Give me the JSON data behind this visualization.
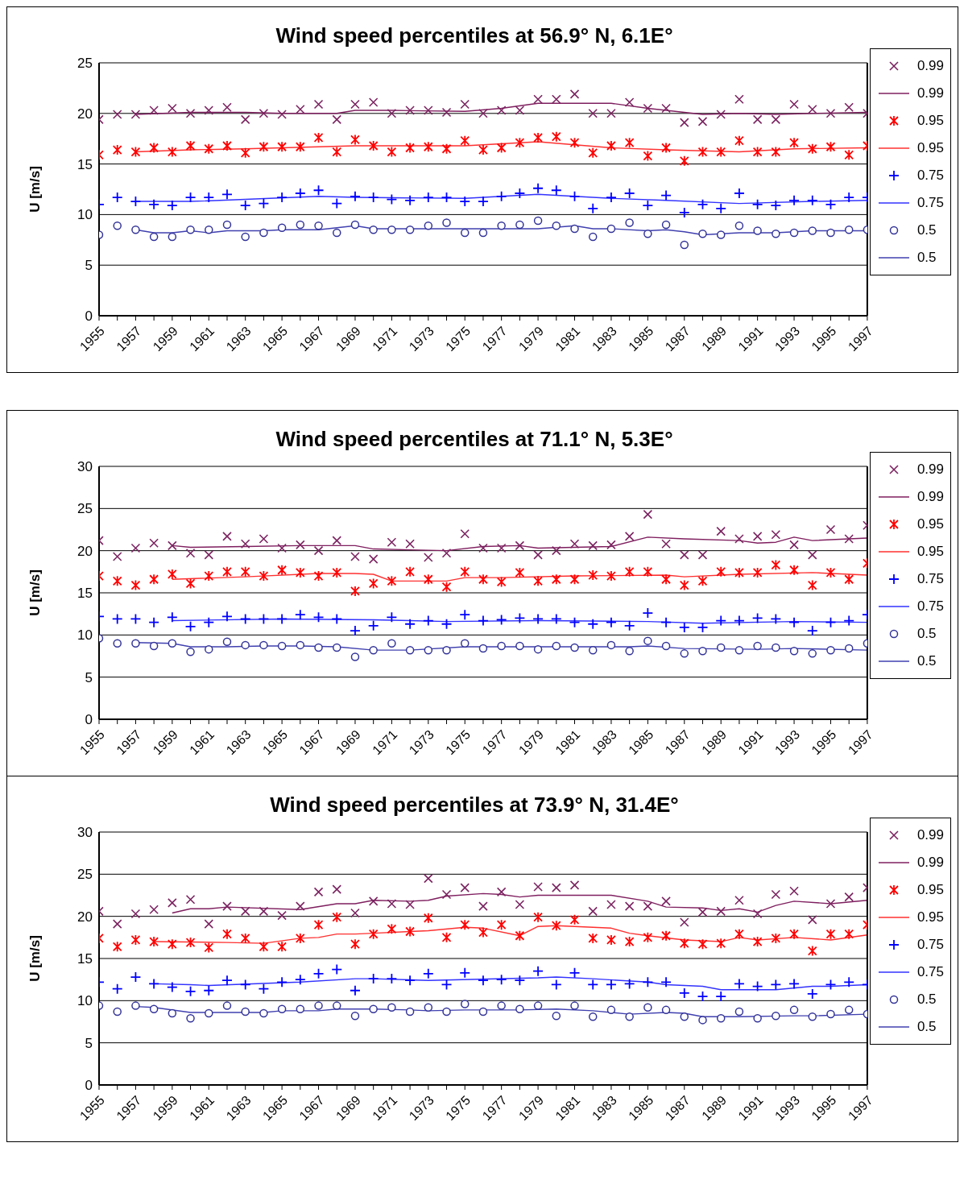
{
  "chart_data": [
    {
      "type": "scatter",
      "title": "Wind speed percentiles at 56.9° N, 6.1E°",
      "ylabel": "U [m/s]",
      "legend": "right",
      "grid": "y",
      "x": [
        1955,
        1956,
        1957,
        1958,
        1959,
        1960,
        1961,
        1962,
        1963,
        1964,
        1965,
        1966,
        1967,
        1968,
        1969,
        1970,
        1971,
        1972,
        1973,
        1974,
        1975,
        1976,
        1977,
        1978,
        1979,
        1980,
        1981,
        1982,
        1983,
        1984,
        1985,
        1986,
        1987,
        1988,
        1989,
        1990,
        1991,
        1992,
        1993,
        1994,
        1995,
        1996,
        1997
      ],
      "xlim": [
        1955,
        1997
      ],
      "xticks": [
        1955,
        {
          "value": 1956,
          "label": null
        },
        1957,
        {
          "value": 1958,
          "label": null
        },
        1959,
        {
          "value": 1960,
          "label": null
        },
        1961,
        {
          "value": 1962,
          "label": null
        },
        1963,
        {
          "value": 1964,
          "label": null
        },
        1965,
        {
          "value": 1966,
          "label": null
        },
        1967,
        {
          "value": 1968,
          "label": null
        },
        1969,
        {
          "value": 1970,
          "label": null
        },
        1971,
        {
          "value": 1972,
          "label": null
        },
        1973,
        {
          "value": 1974,
          "label": null
        },
        1975,
        {
          "value": 1976,
          "label": null
        },
        1977,
        {
          "value": 1978,
          "label": null
        },
        1979,
        {
          "value": 1980,
          "label": null
        },
        1981,
        {
          "value": 1982,
          "label": null
        },
        1983,
        {
          "value": 1984,
          "label": null
        },
        1985,
        {
          "value": 1986,
          "label": null
        },
        1987,
        {
          "value": 1988,
          "label": null
        },
        1989,
        {
          "value": 1990,
          "label": null
        },
        1991,
        {
          "value": 1992,
          "label": null
        },
        1993,
        {
          "value": 1994,
          "label": null
        },
        1995,
        {
          "value": 1996,
          "label": null
        },
        1997
      ],
      "ylim": [
        0,
        25
      ],
      "yticks": [
        0,
        5,
        10,
        15,
        20,
        25
      ],
      "series": [
        {
          "name": "0.99",
          "marker": "x",
          "color": "#7b2461",
          "values": [
            19.4,
            19.9,
            19.9,
            20.3,
            20.5,
            20.0,
            20.3,
            20.6,
            19.4,
            20.0,
            19.9,
            20.4,
            20.9,
            19.4,
            20.9,
            21.1,
            20.0,
            20.3,
            20.3,
            20.1,
            20.9,
            20.0,
            20.3,
            20.3,
            21.4,
            21.4,
            21.9,
            20.0,
            20.0,
            21.1,
            20.5,
            20.5,
            19.1,
            19.2,
            19.9,
            21.4,
            19.4,
            19.4,
            20.9,
            20.4,
            20.0,
            20.6,
            20.0
          ]
        },
        {
          "name": "0.99",
          "type": "line",
          "color": "#7f1f5f",
          "x": [
            1957,
            1960,
            1963,
            1965,
            1968,
            1969,
            1971,
            1975,
            1977,
            1979,
            1983,
            1985,
            1988,
            1990,
            1992,
            1994,
            1997
          ],
          "values": [
            19.9,
            20.1,
            20.1,
            20.0,
            20.0,
            20.3,
            20.3,
            20.2,
            20.5,
            21.0,
            21.0,
            20.5,
            19.9,
            20.0,
            19.9,
            20.0,
            20.1
          ]
        },
        {
          "name": "0.95",
          "color": "#ff0000",
          "values": [
            15.9,
            16.4,
            16.2,
            16.6,
            16.2,
            16.8,
            16.5,
            16.8,
            16.1,
            16.7,
            16.7,
            16.7,
            17.6,
            16.2,
            17.4,
            16.8,
            16.2,
            16.6,
            16.7,
            16.5,
            17.3,
            16.4,
            16.6,
            17.1,
            17.6,
            17.7,
            17.1,
            16.1,
            16.8,
            17.1,
            15.8,
            16.6,
            15.3,
            16.2,
            16.2,
            17.3,
            16.2,
            16.2,
            17.1,
            16.5,
            16.7,
            15.9,
            16.8
          ]
        },
        {
          "name": "0.95",
          "type": "line",
          "color": "#ff3030",
          "x": [
            1957,
            1960,
            1963,
            1967,
            1969,
            1972,
            1975,
            1979,
            1983,
            1986,
            1990,
            1993,
            1997
          ],
          "values": [
            16.2,
            16.4,
            16.5,
            16.7,
            16.8,
            16.8,
            16.8,
            17.2,
            16.6,
            16.4,
            16.2,
            16.5,
            16.6
          ]
        },
        {
          "name": "0.75",
          "marker": "cross",
          "color": "#0000ff",
          "values": [
            11.0,
            11.7,
            11.3,
            11.0,
            10.9,
            11.7,
            11.7,
            12.0,
            10.9,
            11.1,
            11.7,
            12.1,
            12.4,
            11.1,
            11.8,
            11.7,
            11.5,
            11.4,
            11.7,
            11.7,
            11.3,
            11.3,
            11.8,
            12.1,
            12.6,
            12.4,
            11.8,
            10.6,
            11.7,
            12.1,
            10.9,
            11.9,
            10.2,
            11.0,
            10.6,
            12.1,
            11.0,
            10.9,
            11.4,
            11.4,
            11.0,
            11.7,
            11.7
          ]
        },
        {
          "name": "0.75",
          "type": "line",
          "color": "#3333ff",
          "x": [
            1957,
            1960,
            1963,
            1967,
            1969,
            1975,
            1979,
            1983,
            1986,
            1990,
            1994,
            1997
          ],
          "values": [
            11.3,
            11.3,
            11.5,
            11.8,
            11.7,
            11.6,
            12.0,
            11.6,
            11.4,
            11.1,
            11.3,
            11.4
          ]
        },
        {
          "name": "0.5",
          "marker": "circle",
          "color": "#333399",
          "values": [
            8.0,
            8.9,
            8.5,
            7.8,
            7.8,
            8.5,
            8.5,
            9.0,
            7.8,
            8.2,
            8.7,
            9.0,
            8.9,
            8.2,
            9.0,
            8.5,
            8.5,
            8.5,
            8.9,
            9.2,
            8.2,
            8.2,
            8.9,
            9.0,
            9.4,
            8.9,
            8.6,
            7.8,
            8.6,
            9.2,
            8.1,
            9.0,
            7.0,
            8.1,
            8.0,
            8.9,
            8.4,
            8.1,
            8.2,
            8.4,
            8.2,
            8.5,
            8.5
          ]
        },
        {
          "name": "0.5",
          "type": "line",
          "color": "#4040b0",
          "x": [
            1957,
            1958,
            1959,
            1960,
            1961,
            1962,
            1963,
            1964,
            1965,
            1967,
            1969,
            1970,
            1976,
            1979,
            1981,
            1982,
            1983,
            1985,
            1986,
            1987,
            1988,
            1990,
            1992,
            1994,
            1997
          ],
          "values": [
            8.5,
            8.2,
            8.2,
            8.4,
            8.2,
            8.4,
            8.4,
            8.4,
            8.5,
            8.5,
            8.9,
            8.6,
            8.6,
            8.6,
            8.9,
            8.6,
            8.6,
            8.4,
            8.5,
            8.3,
            8.0,
            8.2,
            8.2,
            8.4,
            8.4
          ]
        }
      ]
    },
    {
      "type": "scatter",
      "title": "Wind speed percentiles at 71.1° N, 5.3E°",
      "ylabel": "U [m/s]",
      "legend": "right",
      "grid": "y",
      "x": [
        1955,
        1956,
        1957,
        1958,
        1959,
        1960,
        1961,
        1962,
        1963,
        1964,
        1965,
        1966,
        1967,
        1968,
        1969,
        1970,
        1971,
        1972,
        1973,
        1974,
        1975,
        1976,
        1977,
        1978,
        1979,
        1980,
        1981,
        1982,
        1983,
        1984,
        1985,
        1986,
        1987,
        1988,
        1989,
        1990,
        1991,
        1992,
        1993,
        1994,
        1995,
        1996,
        1997
      ],
      "xlim": [
        1955,
        1997
      ],
      "xticks": [
        1955,
        {
          "value": 1956,
          "label": null
        },
        1957,
        {
          "value": 1958,
          "label": null
        },
        1959,
        {
          "value": 1960,
          "label": null
        },
        1961,
        {
          "value": 1962,
          "label": null
        },
        1963,
        {
          "value": 1964,
          "label": null
        },
        1965,
        {
          "value": 1966,
          "label": null
        },
        1967,
        {
          "value": 1968,
          "label": null
        },
        1969,
        {
          "value": 1970,
          "label": null
        },
        1971,
        {
          "value": 1972,
          "label": null
        },
        1973,
        {
          "value": 1974,
          "label": null
        },
        1975,
        {
          "value": 1976,
          "label": null
        },
        1977,
        {
          "value": 1978,
          "label": null
        },
        1979,
        {
          "value": 1980,
          "label": null
        },
        1981,
        {
          "value": 1982,
          "label": null
        },
        1983,
        {
          "value": 1984,
          "label": null
        },
        1985,
        {
          "value": 1986,
          "label": null
        },
        1987,
        {
          "value": 1988,
          "label": null
        },
        1989,
        {
          "value": 1990,
          "label": null
        },
        1991,
        {
          "value": 1992,
          "label": null
        },
        1993,
        {
          "value": 1994,
          "label": null
        },
        1995,
        {
          "value": 1996,
          "label": null
        },
        1997
      ],
      "ylim": [
        0,
        30
      ],
      "yticks": [
        0,
        5,
        10,
        15,
        20,
        25,
        30
      ],
      "series": [
        {
          "name": "0.99",
          "marker": "x",
          "color": "#7b2461",
          "values": [
            21.2,
            19.3,
            20.3,
            20.9,
            20.6,
            19.7,
            19.5,
            21.7,
            20.8,
            21.4,
            20.3,
            20.7,
            20.0,
            21.2,
            19.3,
            19.0,
            21.0,
            20.8,
            19.2,
            19.7,
            22.0,
            20.3,
            20.3,
            20.6,
            19.5,
            20.0,
            20.8,
            20.6,
            20.7,
            21.7,
            24.3,
            20.8,
            19.5,
            19.5,
            22.3,
            21.4,
            21.7,
            21.9,
            20.7,
            19.5,
            22.5,
            21.4,
            23.0
          ]
        },
        {
          "name": "0.99",
          "type": "line",
          "color": "#7f1f5f",
          "x": [
            1959,
            1960,
            1963,
            1966,
            1969,
            1970,
            1972,
            1974,
            1976,
            1978,
            1979,
            1983,
            1985,
            1987,
            1990,
            1991,
            1992,
            1993,
            1994,
            1996,
            1997
          ],
          "values": [
            20.6,
            20.4,
            20.5,
            20.6,
            20.6,
            20.2,
            20.1,
            20.0,
            20.5,
            20.6,
            20.3,
            20.5,
            21.6,
            21.4,
            21.2,
            20.9,
            21.0,
            21.6,
            21.2,
            21.4,
            21.5
          ]
        },
        {
          "name": "0.95",
          "color": "#ff0000",
          "values": [
            17.0,
            16.4,
            15.9,
            16.6,
            17.2,
            16.1,
            17.0,
            17.5,
            17.5,
            17.0,
            17.7,
            17.4,
            17.0,
            17.4,
            15.2,
            16.1,
            16.4,
            17.5,
            16.6,
            15.7,
            17.5,
            16.6,
            16.3,
            17.4,
            16.4,
            16.6,
            16.6,
            17.1,
            17.0,
            17.5,
            17.5,
            16.6,
            15.9,
            16.4,
            17.5,
            17.4,
            17.4,
            18.3,
            17.7,
            15.9,
            17.4,
            16.6,
            18.5
          ]
        },
        {
          "name": "0.95",
          "type": "line",
          "color": "#ff3030",
          "x": [
            1959,
            1963,
            1967,
            1969,
            1970,
            1971,
            1972,
            1974,
            1975,
            1977,
            1981,
            1986,
            1987,
            1990,
            1994,
            1997
          ],
          "values": [
            16.6,
            16.9,
            17.3,
            17.3,
            17.2,
            16.4,
            16.4,
            16.4,
            16.8,
            16.8,
            17.0,
            17.1,
            16.9,
            17.2,
            17.4,
            17.1
          ]
        },
        {
          "name": "0.75",
          "marker": "cross",
          "color": "#0000ff",
          "values": [
            12.2,
            11.9,
            11.9,
            11.5,
            12.1,
            11.0,
            11.5,
            12.2,
            11.9,
            11.9,
            11.9,
            12.4,
            12.1,
            11.9,
            10.5,
            11.1,
            12.1,
            11.3,
            11.7,
            11.3,
            12.4,
            11.7,
            11.8,
            12.0,
            11.9,
            11.9,
            11.5,
            11.3,
            11.5,
            11.1,
            12.6,
            11.5,
            10.9,
            10.9,
            11.7,
            11.7,
            12.0,
            11.9,
            11.5,
            10.5,
            11.5,
            11.7,
            12.4
          ]
        },
        {
          "name": "0.75",
          "type": "line",
          "color": "#3333ff",
          "x": [
            1959,
            1965,
            1970,
            1974,
            1979,
            1985,
            1988,
            1993,
            1997
          ],
          "values": [
            11.7,
            11.9,
            11.8,
            11.6,
            11.7,
            11.6,
            11.4,
            11.6,
            11.5
          ]
        },
        {
          "name": "0.5",
          "marker": "circle",
          "color": "#333399",
          "values": [
            9.6,
            9.0,
            9.0,
            8.7,
            9.0,
            8.0,
            8.3,
            9.2,
            8.8,
            8.8,
            8.7,
            8.8,
            8.5,
            8.5,
            7.4,
            8.2,
            9.0,
            8.2,
            8.2,
            8.2,
            9.0,
            8.4,
            8.7,
            8.7,
            8.3,
            8.7,
            8.5,
            8.2,
            8.8,
            8.1,
            9.3,
            8.7,
            7.8,
            8.1,
            8.5,
            8.2,
            8.7,
            8.5,
            8.1,
            7.8,
            8.2,
            8.4,
            9.0
          ]
        },
        {
          "name": "0.5",
          "type": "line",
          "color": "#4040b0",
          "x": [
            1957,
            1959,
            1960,
            1962,
            1964,
            1966,
            1968,
            1970,
            1972,
            1975,
            1984,
            1985,
            1987,
            1991,
            1993,
            1997
          ],
          "values": [
            9.1,
            9.0,
            8.6,
            8.6,
            8.7,
            8.7,
            8.6,
            8.2,
            8.2,
            8.6,
            8.6,
            8.7,
            8.4,
            8.3,
            8.4,
            8.2
          ]
        }
      ]
    },
    {
      "type": "scatter",
      "title": "Wind speed percentiles at 73.9° N, 31.4E°",
      "ylabel": "U [m/s]",
      "legend": "right",
      "grid": "y",
      "x": [
        1955,
        1956,
        1957,
        1958,
        1959,
        1960,
        1961,
        1962,
        1963,
        1964,
        1965,
        1966,
        1967,
        1968,
        1969,
        1970,
        1971,
        1972,
        1973,
        1974,
        1975,
        1976,
        1977,
        1978,
        1979,
        1980,
        1981,
        1982,
        1983,
        1984,
        1985,
        1986,
        1987,
        1988,
        1989,
        1990,
        1991,
        1992,
        1993,
        1994,
        1995,
        1996,
        1997
      ],
      "xlim": [
        1955,
        1997
      ],
      "xticks": [
        1955,
        {
          "value": 1956,
          "label": null
        },
        1957,
        {
          "value": 1958,
          "label": null
        },
        1959,
        {
          "value": 1960,
          "label": null
        },
        1961,
        {
          "value": 1962,
          "label": null
        },
        1963,
        {
          "value": 1964,
          "label": null
        },
        1965,
        {
          "value": 1966,
          "label": null
        },
        1967,
        {
          "value": 1968,
          "label": null
        },
        1969,
        {
          "value": 1970,
          "label": null
        },
        1971,
        {
          "value": 1972,
          "label": null
        },
        1973,
        {
          "value": 1974,
          "label": null
        },
        1975,
        {
          "value": 1976,
          "label": null
        },
        1977,
        {
          "value": 1978,
          "label": null
        },
        1979,
        {
          "value": 1980,
          "label": null
        },
        1981,
        {
          "value": 1982,
          "label": null
        },
        1983,
        {
          "value": 1984,
          "label": null
        },
        1985,
        {
          "value": 1986,
          "label": null
        },
        1987,
        {
          "value": 1988,
          "label": null
        },
        1989,
        {
          "value": 1990,
          "label": null
        },
        1991,
        {
          "value": 1992,
          "label": null
        },
        1993,
        {
          "value": 1994,
          "label": null
        },
        1995,
        {
          "value": 1996,
          "label": null
        },
        1997
      ],
      "ylim": [
        0,
        30
      ],
      "yticks": [
        0,
        5,
        10,
        15,
        20,
        25,
        30
      ],
      "series": [
        {
          "name": "0.99",
          "marker": "x",
          "color": "#7b2461",
          "values": [
            20.6,
            19.1,
            20.3,
            20.8,
            21.6,
            22.0,
            19.1,
            21.2,
            20.6,
            20.6,
            20.1,
            21.2,
            22.9,
            23.2,
            20.4,
            21.8,
            21.5,
            21.4,
            24.5,
            22.6,
            23.4,
            21.2,
            22.9,
            21.4,
            23.5,
            23.4,
            23.7,
            20.6,
            21.4,
            21.2,
            21.2,
            21.8,
            19.3,
            20.5,
            20.6,
            21.9,
            20.3,
            22.6,
            23.0,
            19.6,
            21.5,
            22.3,
            23.4
          ]
        },
        {
          "name": "0.99",
          "type": "line",
          "color": "#7f1f5f",
          "x": [
            1959,
            1960,
            1961,
            1962,
            1966,
            1968,
            1969,
            1970,
            1972,
            1973,
            1974,
            1976,
            1977,
            1978,
            1979,
            1980,
            1982,
            1983,
            1985,
            1986,
            1988,
            1989,
            1990,
            1991,
            1992,
            1993,
            1995,
            1997
          ],
          "values": [
            20.4,
            20.9,
            20.9,
            21.1,
            20.8,
            21.5,
            21.5,
            21.9,
            21.8,
            21.9,
            22.4,
            22.7,
            22.6,
            22.3,
            22.5,
            22.5,
            22.5,
            22.5,
            21.8,
            21.1,
            21.0,
            20.7,
            20.9,
            20.5,
            21.3,
            21.8,
            21.5,
            21.9
          ]
        },
        {
          "name": "0.95",
          "color": "#ff0000",
          "values": [
            17.4,
            16.4,
            17.2,
            17.0,
            16.7,
            16.9,
            16.3,
            17.9,
            17.4,
            16.4,
            16.4,
            17.4,
            19.0,
            19.9,
            16.7,
            17.9,
            18.5,
            18.2,
            19.8,
            17.5,
            19.0,
            18.1,
            19.0,
            17.7,
            19.9,
            18.9,
            19.6,
            17.4,
            17.2,
            17.0,
            17.5,
            17.7,
            16.8,
            16.7,
            16.8,
            17.9,
            17.0,
            17.4,
            17.9,
            15.9,
            17.9,
            17.9,
            19.0
          ]
        },
        {
          "name": "0.95",
          "type": "line",
          "color": "#ff3030",
          "x": [
            1958,
            1962,
            1964,
            1966,
            1967,
            1968,
            1969,
            1970,
            1972,
            1973,
            1975,
            1976,
            1978,
            1979,
            1980,
            1982,
            1983,
            1984,
            1985,
            1987,
            1989,
            1990,
            1991,
            1993,
            1995,
            1997
          ],
          "values": [
            17.0,
            16.9,
            16.8,
            17.4,
            17.5,
            17.9,
            17.9,
            18.0,
            18.2,
            18.3,
            18.7,
            18.6,
            17.7,
            18.8,
            18.9,
            18.7,
            18.6,
            18.0,
            17.7,
            17.2,
            17.0,
            17.5,
            17.2,
            17.5,
            17.2,
            17.8
          ]
        },
        {
          "name": "0.75",
          "marker": "cross",
          "color": "#0000ff",
          "values": [
            12.2,
            11.4,
            12.8,
            12.0,
            11.6,
            11.1,
            11.2,
            12.4,
            11.9,
            11.4,
            12.2,
            12.5,
            13.2,
            13.7,
            11.2,
            12.6,
            12.6,
            12.4,
            13.2,
            11.9,
            13.3,
            12.4,
            12.5,
            12.4,
            13.5,
            11.9,
            13.3,
            11.9,
            11.9,
            12.0,
            12.2,
            12.2,
            10.9,
            10.5,
            10.5,
            12.0,
            11.7,
            11.9,
            12.0,
            10.8,
            11.9,
            12.2,
            11.9
          ]
        },
        {
          "name": "0.75",
          "type": "line",
          "color": "#3333ff",
          "x": [
            1958,
            1960,
            1961,
            1966,
            1969,
            1970,
            1973,
            1979,
            1980,
            1982,
            1985,
            1986,
            1988,
            1989,
            1992,
            1994,
            1995,
            1997
          ],
          "values": [
            12.0,
            11.9,
            11.8,
            12.2,
            12.6,
            12.6,
            12.4,
            12.7,
            12.8,
            12.6,
            12.2,
            11.9,
            11.7,
            11.3,
            11.3,
            11.7,
            11.7,
            11.9
          ]
        },
        {
          "name": "0.5",
          "marker": "circle",
          "color": "#333399",
          "values": [
            9.4,
            8.7,
            9.4,
            9.0,
            8.5,
            7.9,
            8.5,
            9.4,
            8.7,
            8.5,
            9.0,
            9.0,
            9.4,
            9.4,
            8.2,
            9.0,
            9.2,
            8.7,
            9.2,
            8.7,
            9.6,
            8.7,
            9.4,
            9.0,
            9.4,
            8.2,
            9.4,
            8.1,
            8.9,
            8.1,
            9.2,
            8.9,
            8.1,
            7.7,
            7.9,
            8.7,
            7.9,
            8.2,
            8.9,
            8.1,
            8.4,
            8.9,
            8.4
          ]
        },
        {
          "name": "0.5",
          "type": "line",
          "color": "#4040b0",
          "x": [
            1957,
            1958,
            1960,
            1962,
            1964,
            1965,
            1967,
            1968,
            1970,
            1972,
            1973,
            1975,
            1978,
            1980,
            1982,
            1984,
            1986,
            1987,
            1988,
            1990,
            1993,
            1994,
            1997
          ],
          "values": [
            9.3,
            9.2,
            8.6,
            8.6,
            8.6,
            8.8,
            8.8,
            9.0,
            9.0,
            8.9,
            8.8,
            8.9,
            8.9,
            9.0,
            8.8,
            8.4,
            8.6,
            8.5,
            8.1,
            8.1,
            8.2,
            8.2,
            8.4
          ]
        }
      ]
    }
  ]
}
